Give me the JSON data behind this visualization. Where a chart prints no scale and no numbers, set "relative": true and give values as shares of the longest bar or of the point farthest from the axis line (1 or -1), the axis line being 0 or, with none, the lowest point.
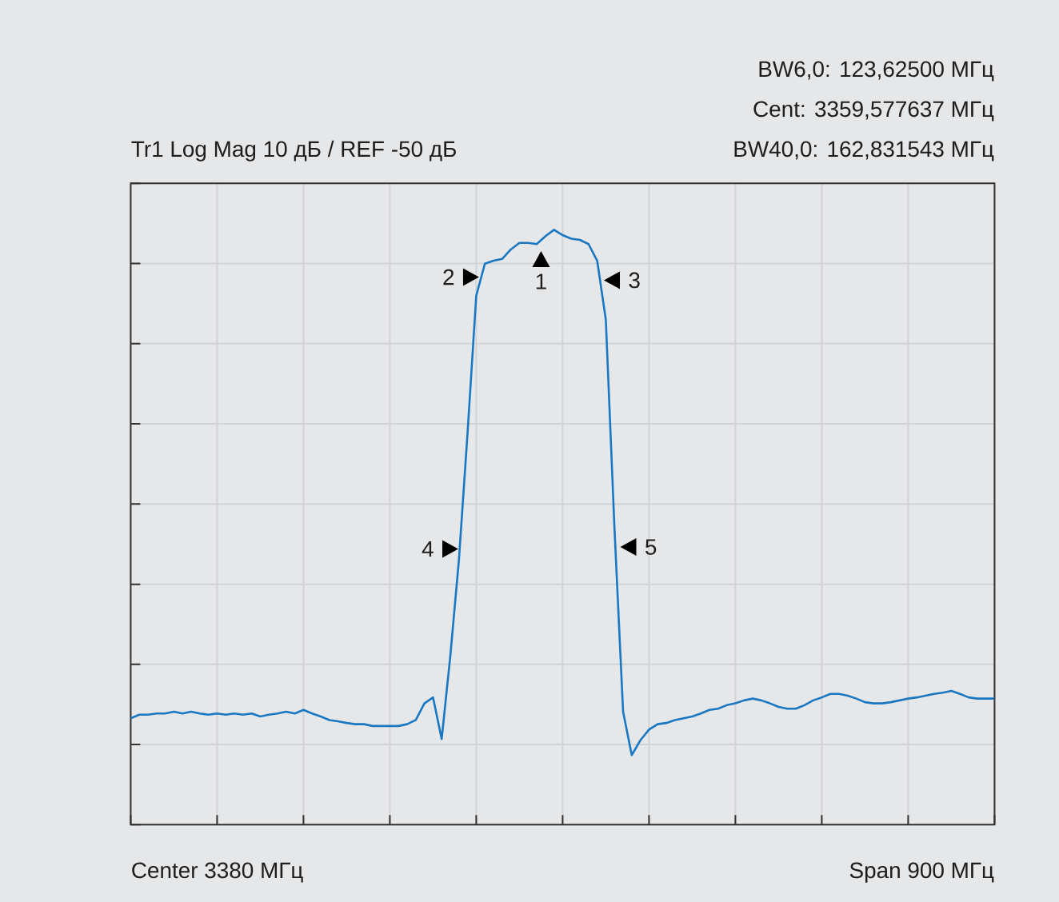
{
  "chart_data": {
    "type": "line",
    "title": "Tr1 Log Mag 10 дБ / REF -50 дБ",
    "relative": true,
    "grid": true,
    "categories": [
      null,
      null,
      null,
      null,
      null,
      null,
      null,
      null,
      null,
      null,
      null,
      null,
      null,
      null,
      null,
      null,
      null,
      null,
      null,
      null,
      null,
      null,
      null,
      null,
      null,
      null,
      null,
      null,
      null,
      null,
      null,
      null,
      null,
      null,
      null,
      null,
      null,
      null,
      null,
      null,
      null,
      null,
      null,
      null,
      null,
      null,
      null,
      null,
      null,
      null,
      null,
      null,
      null,
      null,
      null,
      null,
      null,
      null,
      null,
      null,
      null,
      null,
      null,
      null,
      null,
      null,
      null,
      null,
      null,
      null,
      null,
      null,
      null,
      null,
      null,
      null,
      null,
      null,
      null,
      null,
      null,
      null,
      null,
      null,
      null,
      null,
      null,
      null,
      null,
      null,
      null,
      null,
      null,
      null,
      null,
      null,
      null,
      null,
      null,
      null,
      null
    ],
    "series": [
      {
        "type": "line",
        "color": "#1a78c2",
        "values": [
          0.179,
          0.185,
          0.185,
          0.187,
          0.187,
          0.19,
          0.187,
          0.19,
          0.187,
          0.185,
          0.187,
          0.185,
          0.187,
          0.185,
          0.187,
          0.182,
          0.185,
          0.187,
          0.19,
          0.187,
          0.193,
          0.187,
          0.182,
          0.176,
          0.174,
          0.171,
          0.169,
          0.169,
          0.166,
          0.166,
          0.166,
          0.166,
          0.169,
          0.176,
          0.204,
          0.214,
          0.144,
          0.284,
          0.446,
          0.66,
          0.889,
          0.943,
          0.948,
          0.951,
          0.967,
          0.978,
          0.978,
          0.976,
          0.989,
          1,
          0.991,
          0.985,
          0.983,
          0.976,
          0.948,
          0.849,
          0.499,
          0.19,
          0.117,
          0.142,
          0.16,
          0.169,
          0.171,
          0.176,
          0.179,
          0.182,
          0.187,
          0.193,
          0.195,
          0.201,
          0.204,
          0.209,
          0.212,
          0.209,
          0.204,
          0.198,
          0.195,
          0.195,
          0.201,
          0.209,
          0.214,
          0.22,
          0.22,
          0.217,
          0.212,
          0.206,
          0.204,
          0.204,
          0.206,
          0.209,
          0.212,
          0.214,
          0.217,
          0.22,
          0.222,
          0.225,
          0.22,
          0.214,
          0.212,
          0.212,
          0.212
        ]
      }
    ],
    "annotations": [
      "BW6,0: 123,62500 МГц",
      "Cent: 3359,577637 МГц",
      "BW40,0: 162,831543 МГц",
      "Center 3380 МГц",
      "Span 900 МГц",
      "4",
      "2",
      "1",
      "3",
      "5"
    ]
  }
}
